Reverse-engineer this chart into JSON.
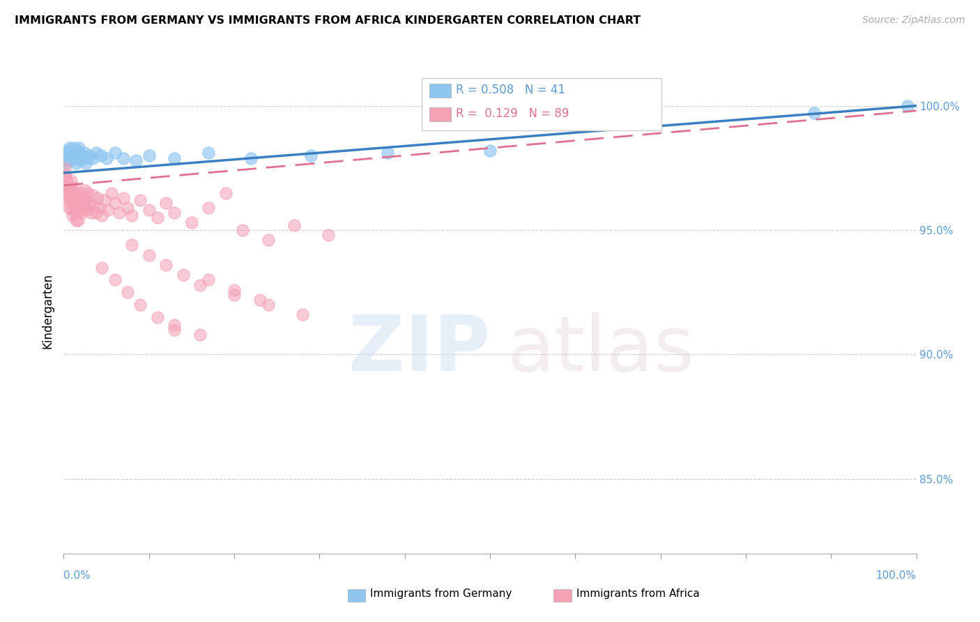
{
  "title": "IMMIGRANTS FROM GERMANY VS IMMIGRANTS FROM AFRICA KINDERGARTEN CORRELATION CHART",
  "source": "Source: ZipAtlas.com",
  "ylabel": "Kindergarten",
  "legend_label1": "Immigrants from Germany",
  "legend_label2": "Immigrants from Africa",
  "R_germany": 0.508,
  "N_germany": 41,
  "R_africa": 0.129,
  "N_africa": 89,
  "color_germany": "#8EC6F0",
  "color_africa": "#F4A0B5",
  "line_color_germany": "#3A7FC1",
  "line_color_africa": "#E07090",
  "background_color": "#FFFFFF",
  "xlim": [
    0.0,
    1.0
  ],
  "ylim": [
    0.82,
    1.015
  ],
  "ytick_vals": [
    0.85,
    0.9,
    0.95,
    1.0
  ],
  "ytick_labels": [
    "85.0%",
    "90.0%",
    "95.0%",
    "100.0%"
  ],
  "germany_line_x0": 0.0,
  "germany_line_y0": 0.973,
  "germany_line_x1": 1.0,
  "germany_line_y1": 1.0,
  "africa_line_x0": 0.0,
  "africa_line_y0": 0.968,
  "africa_line_x1": 1.0,
  "africa_line_y1": 0.998,
  "germany_x": [
    0.001,
    0.002,
    0.003,
    0.004,
    0.005,
    0.006,
    0.007,
    0.008,
    0.009,
    0.01,
    0.011,
    0.012,
    0.013,
    0.014,
    0.015,
    0.016,
    0.017,
    0.018,
    0.019,
    0.02,
    0.022,
    0.024,
    0.026,
    0.028,
    0.03,
    0.034,
    0.038,
    0.044,
    0.05,
    0.06,
    0.07,
    0.085,
    0.1,
    0.13,
    0.17,
    0.22,
    0.29,
    0.38,
    0.5,
    0.88,
    0.99
  ],
  "germany_y": [
    0.978,
    0.98,
    0.977,
    0.982,
    0.979,
    0.981,
    0.983,
    0.978,
    0.98,
    0.979,
    0.981,
    0.983,
    0.98,
    0.977,
    0.982,
    0.979,
    0.981,
    0.983,
    0.978,
    0.98,
    0.979,
    0.981,
    0.977,
    0.979,
    0.98,
    0.979,
    0.981,
    0.98,
    0.979,
    0.981,
    0.979,
    0.978,
    0.98,
    0.979,
    0.981,
    0.979,
    0.98,
    0.981,
    0.982,
    0.997,
    1.0
  ],
  "africa_x": [
    0.001,
    0.002,
    0.003,
    0.004,
    0.005,
    0.006,
    0.007,
    0.008,
    0.009,
    0.01,
    0.011,
    0.012,
    0.013,
    0.014,
    0.015,
    0.002,
    0.003,
    0.004,
    0.005,
    0.006,
    0.007,
    0.008,
    0.009,
    0.01,
    0.011,
    0.012,
    0.013,
    0.014,
    0.015,
    0.016,
    0.017,
    0.018,
    0.019,
    0.02,
    0.021,
    0.022,
    0.023,
    0.024,
    0.025,
    0.026,
    0.027,
    0.028,
    0.03,
    0.032,
    0.034,
    0.036,
    0.038,
    0.04,
    0.042,
    0.045,
    0.048,
    0.052,
    0.056,
    0.06,
    0.065,
    0.07,
    0.075,
    0.08,
    0.09,
    0.1,
    0.11,
    0.12,
    0.13,
    0.15,
    0.17,
    0.19,
    0.21,
    0.24,
    0.27,
    0.31,
    0.08,
    0.1,
    0.12,
    0.14,
    0.17,
    0.2,
    0.23,
    0.16,
    0.2,
    0.24,
    0.28,
    0.13,
    0.16,
    0.045,
    0.06,
    0.075,
    0.09,
    0.11,
    0.13
  ],
  "africa_y": [
    0.975,
    0.972,
    0.968,
    0.97,
    0.966,
    0.963,
    0.967,
    0.964,
    0.97,
    0.966,
    0.963,
    0.96,
    0.967,
    0.964,
    0.96,
    0.972,
    0.968,
    0.965,
    0.962,
    0.959,
    0.966,
    0.963,
    0.959,
    0.956,
    0.964,
    0.96,
    0.957,
    0.954,
    0.961,
    0.958,
    0.954,
    0.962,
    0.958,
    0.965,
    0.96,
    0.957,
    0.963,
    0.959,
    0.966,
    0.962,
    0.958,
    0.965,
    0.961,
    0.957,
    0.964,
    0.96,
    0.957,
    0.963,
    0.959,
    0.956,
    0.962,
    0.958,
    0.965,
    0.961,
    0.957,
    0.963,
    0.959,
    0.956,
    0.962,
    0.958,
    0.955,
    0.961,
    0.957,
    0.953,
    0.959,
    0.965,
    0.95,
    0.946,
    0.952,
    0.948,
    0.944,
    0.94,
    0.936,
    0.932,
    0.93,
    0.926,
    0.922,
    0.928,
    0.924,
    0.92,
    0.916,
    0.912,
    0.908,
    0.935,
    0.93,
    0.925,
    0.92,
    0.915,
    0.91
  ]
}
